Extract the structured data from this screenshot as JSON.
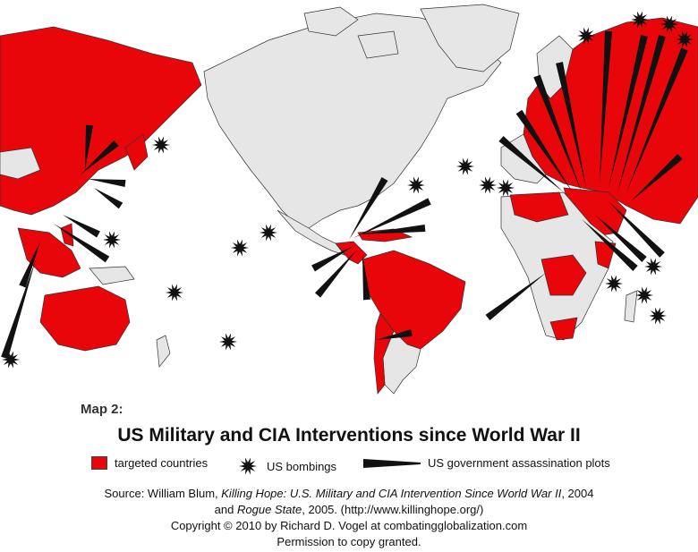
{
  "map": {
    "colors": {
      "ocean": "#ffffff",
      "land": "#e6e6e6",
      "targeted": "#e8060a",
      "border": "#333333",
      "marker": "#111111"
    },
    "legend": {
      "targeted": "targeted countries",
      "bombings": "US bombings",
      "plots": "US government assassination plots"
    },
    "map_label": "Map 2:",
    "title": "US Military and CIA Interventions since World War II",
    "source": {
      "prefix": "Source:  William Blum, ",
      "book1": "Killing Hope: U.S. Military and CIA Intervention Since World War II",
      "year1": ", 2004",
      "and": "and ",
      "book2": "Rogue State",
      "year2": ", 2005. (http://www.killinghope.org/)",
      "copyright": "Copyright  ©  2010 by  Richard D. Vogel at combatingglobalization.com",
      "permission": "Permission to copy granted."
    },
    "icons": {
      "targeted": "red-square-icon",
      "bombing": "starburst-icon",
      "plot": "wedge-icon"
    }
  }
}
